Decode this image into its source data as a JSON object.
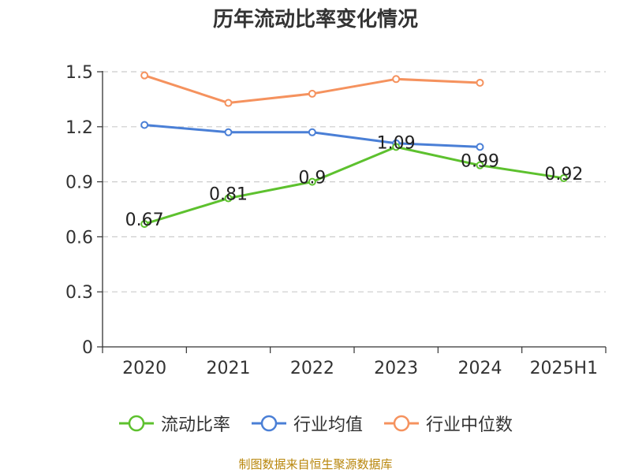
{
  "title": "历年流动比率变化情况",
  "source": "制图数据来自恒生聚源数据库",
  "chart_data": {
    "type": "line",
    "title": "历年流动比率变化情况",
    "categories": [
      "2020",
      "2021",
      "2022",
      "2023",
      "2024",
      "2025H1"
    ],
    "y_ticks": [
      "0",
      "0.3",
      "0.6",
      "0.9",
      "1.2",
      "1.5"
    ],
    "ylim": [
      0,
      1.5
    ],
    "grid": true,
    "legend_position": "bottom",
    "series": [
      {
        "name": "流动比率",
        "color": "#5dc12e",
        "values": [
          0.67,
          0.81,
          0.9,
          1.09,
          0.99,
          0.92
        ],
        "labels": [
          "0.67",
          "0.81",
          "0.9",
          "1.09",
          "0.99",
          "0.92"
        ]
      },
      {
        "name": "行业均值",
        "color": "#4a7fd6",
        "values": [
          1.21,
          1.17,
          1.17,
          1.11,
          1.09,
          null
        ]
      },
      {
        "name": "行业中位数",
        "color": "#f5925e",
        "values": [
          1.48,
          1.33,
          1.38,
          1.46,
          1.44,
          null
        ]
      }
    ]
  }
}
